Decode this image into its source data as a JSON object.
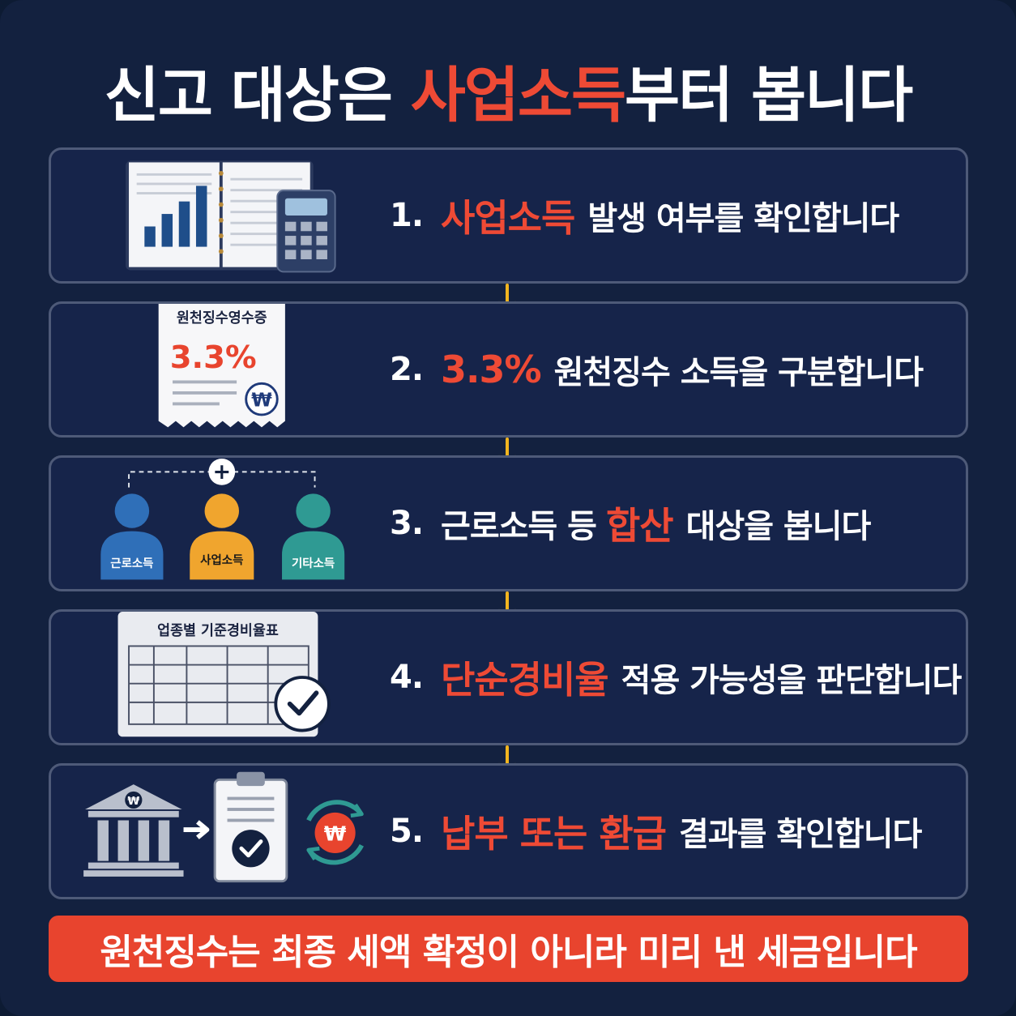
{
  "title": {
    "part1": "신고 대상은 ",
    "highlight": "사업소득",
    "part2": "부터 봅니다"
  },
  "steps": [
    {
      "num": "1.",
      "highlight": "사업소득",
      "rest": "발생 여부를 확인합니다"
    },
    {
      "num": "2.",
      "highlight": "3.3%",
      "rest": "원천징수 소득을 구분합니다"
    },
    {
      "num": "3.",
      "pre": "근로소득 등 ",
      "highlight": "합산",
      "rest": "대상을 봅니다"
    },
    {
      "num": "4.",
      "highlight": "단순경비율",
      "rest": "적용 가능성을 판단합니다"
    },
    {
      "num": "5.",
      "highlight": "납부 또는 환급",
      "rest": "결과를 확인합니다"
    }
  ],
  "receipt": {
    "title": "원천징수영수증",
    "rate": "3.3%",
    "currency": "₩"
  },
  "people": {
    "left": "근로소득",
    "center": "사업소득",
    "right": "기타소득",
    "plus": "+"
  },
  "table": {
    "title": "업종별 기준경비율표"
  },
  "coin": {
    "currency": "₩"
  },
  "banner": {
    "text": "원천징수는 최종 세액 확정이 아니라 미리 낸 세금입니다"
  },
  "colors": {
    "background": "#13213f",
    "accent_red": "#ee4a35",
    "arrow_yellow": "#f2b51f",
    "person_blue": "#2f6fb8",
    "person_orange": "#f0a52e",
    "person_teal": "#2f9a93"
  },
  "icons": [
    "book-chart-icon",
    "calculator-icon",
    "receipt-icon",
    "people-icon",
    "table-icon",
    "check-icon",
    "bank-icon",
    "clipboard-icon",
    "refresh-coin-icon",
    "arrow-down-icon"
  ]
}
